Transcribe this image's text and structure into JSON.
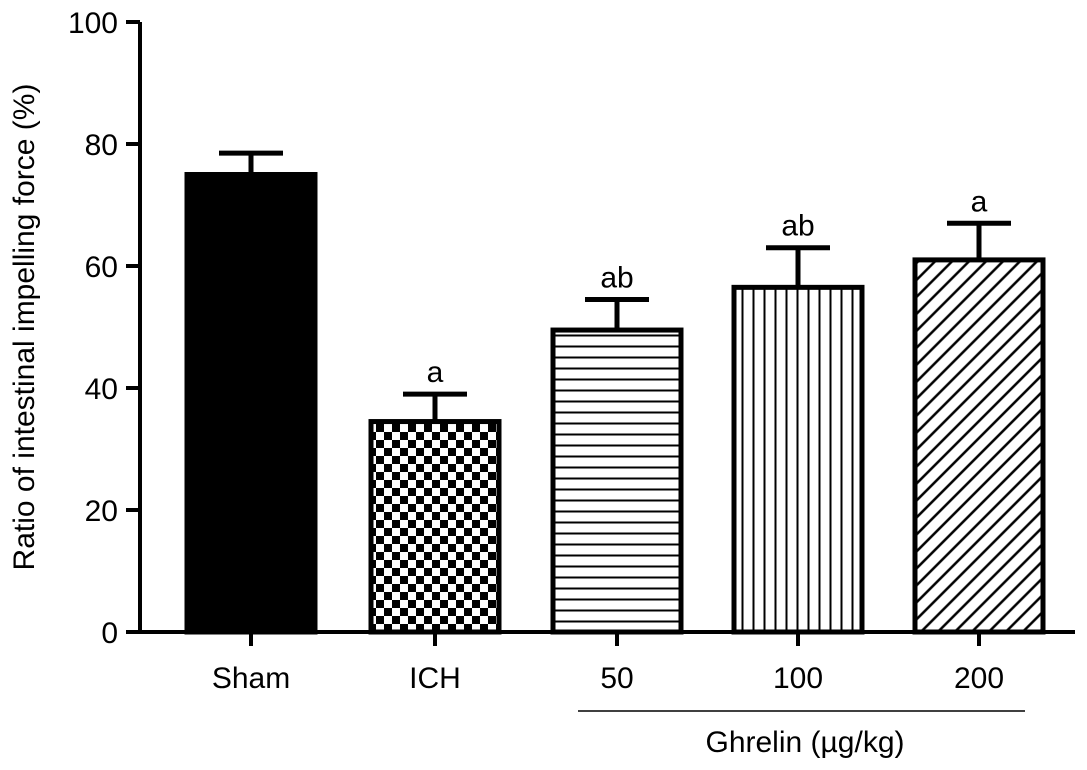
{
  "chart_data": {
    "type": "bar",
    "title": "",
    "xlabel": "",
    "ylabel": "Ratio of intestinal impelling force (%)",
    "ylim": [
      0,
      100
    ],
    "yticks": [
      0,
      20,
      40,
      60,
      80,
      100
    ],
    "categories": [
      "Sham",
      "ICH",
      "50",
      "100",
      "200"
    ],
    "values": [
      75,
      34.5,
      49.5,
      56.5,
      61
    ],
    "errors": [
      3.5,
      4.5,
      5,
      6.5,
      6
    ],
    "annotations": [
      "",
      "a",
      "ab",
      "ab",
      "a"
    ],
    "patterns": [
      "solid",
      "checker",
      "horizontal-lines",
      "vertical-lines",
      "diagonal-lines"
    ],
    "group_label": "Ghrelin (µg/kg)",
    "grid": false,
    "colors": {
      "bar_fill": "#000000",
      "bar_stroke": "#000000",
      "background": "#ffffff"
    }
  }
}
